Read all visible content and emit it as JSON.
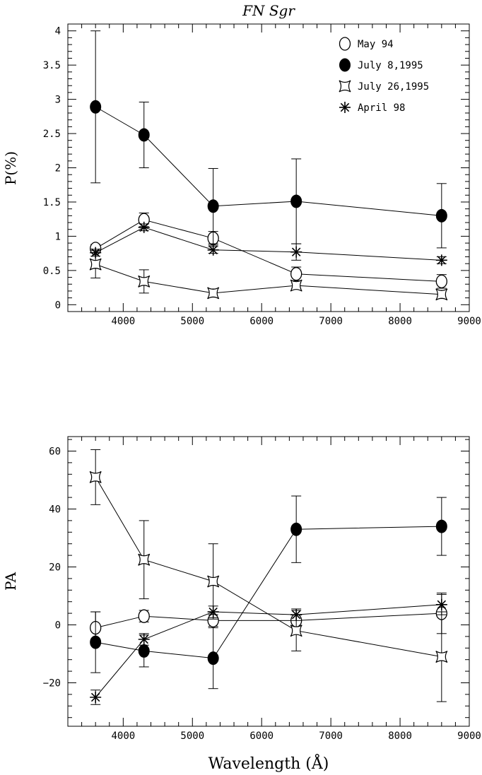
{
  "chart_data": [
    {
      "type": "scatter",
      "title": "FN Sgr",
      "xlabel": "",
      "ylabel": "P(%)",
      "xlim": [
        3200,
        9000
      ],
      "ylim": [
        -0.1,
        4.1
      ],
      "x_ticks": [
        4000,
        5000,
        6000,
        7000,
        8000,
        9000
      ],
      "y_ticks": [
        0,
        0.5,
        1,
        1.5,
        2,
        2.5,
        3,
        3.5,
        4
      ],
      "y_tick_labels": [
        "0",
        "0.5",
        "1",
        "1.5",
        "2",
        "2.5",
        "3",
        "3.5",
        "4"
      ],
      "legend_position": "top-right",
      "series": [
        {
          "name": "May 94",
          "marker": "open-circle",
          "x": [
            3600,
            4300,
            5300,
            6500,
            8600
          ],
          "y": [
            0.82,
            1.24,
            0.97,
            0.45,
            0.34
          ],
          "err": [
            0.06,
            0.1,
            0.1,
            0.1,
            0.1
          ]
        },
        {
          "name": "July 8,1995",
          "marker": "filled-circle",
          "x": [
            3600,
            4300,
            5300,
            6500,
            8600
          ],
          "y": [
            2.89,
            2.48,
            1.44,
            1.51,
            1.3
          ],
          "err": [
            1.11,
            0.48,
            0.55,
            0.62,
            0.47
          ]
        },
        {
          "name": "July 26,1995",
          "marker": "four-point-star",
          "x": [
            3600,
            4300,
            5300,
            6500,
            8600
          ],
          "y": [
            0.59,
            0.34,
            0.17,
            0.28,
            0.15
          ],
          "err": [
            0.2,
            0.17,
            0.06,
            0.04,
            0.06
          ]
        },
        {
          "name": "April 98",
          "marker": "asterisk",
          "x": [
            3600,
            4300,
            5300,
            6500,
            8600
          ],
          "y": [
            0.76,
            1.13,
            0.8,
            0.77,
            0.65
          ],
          "err": [
            0.05,
            0.05,
            0.05,
            0.12,
            0.05
          ]
        }
      ]
    },
    {
      "type": "scatter",
      "title": "",
      "xlabel": "Wavelength (Å)",
      "ylabel": "PA",
      "xlim": [
        3200,
        9000
      ],
      "ylim": [
        -35,
        65
      ],
      "x_ticks": [
        4000,
        5000,
        6000,
        7000,
        8000,
        9000
      ],
      "y_ticks": [
        -20,
        0,
        20,
        40,
        60
      ],
      "y_tick_labels": [
        "−20",
        "0",
        "20",
        "40",
        "60"
      ],
      "series": [
        {
          "name": "May 94",
          "marker": "open-circle",
          "x": [
            3600,
            4300,
            5300,
            6500,
            8600
          ],
          "y": [
            -1,
            3,
            1.5,
            1.5,
            4
          ],
          "err": [
            5.5,
            2,
            2,
            2,
            7
          ]
        },
        {
          "name": "July 8,1995",
          "marker": "filled-circle",
          "x": [
            3600,
            4300,
            5300,
            6500,
            8600
          ],
          "y": [
            -6,
            -9,
            -11.5,
            33,
            34
          ],
          "err": [
            10.5,
            5.5,
            10.5,
            11.5,
            10
          ]
        },
        {
          "name": "July 26,1995",
          "marker": "four-point-star",
          "x": [
            3600,
            4300,
            5300,
            6500,
            8600
          ],
          "y": [
            51,
            22.5,
            15,
            -2,
            -11
          ],
          "err": [
            9.5,
            13.5,
            13,
            7,
            15.5
          ]
        },
        {
          "name": "April 98",
          "marker": "asterisk",
          "x": [
            3600,
            4300,
            5300,
            6500,
            8600
          ],
          "y": [
            -25,
            -5,
            4.5,
            3.5,
            7
          ],
          "err": [
            2.5,
            2,
            2,
            2,
            3.5
          ]
        }
      ]
    }
  ]
}
